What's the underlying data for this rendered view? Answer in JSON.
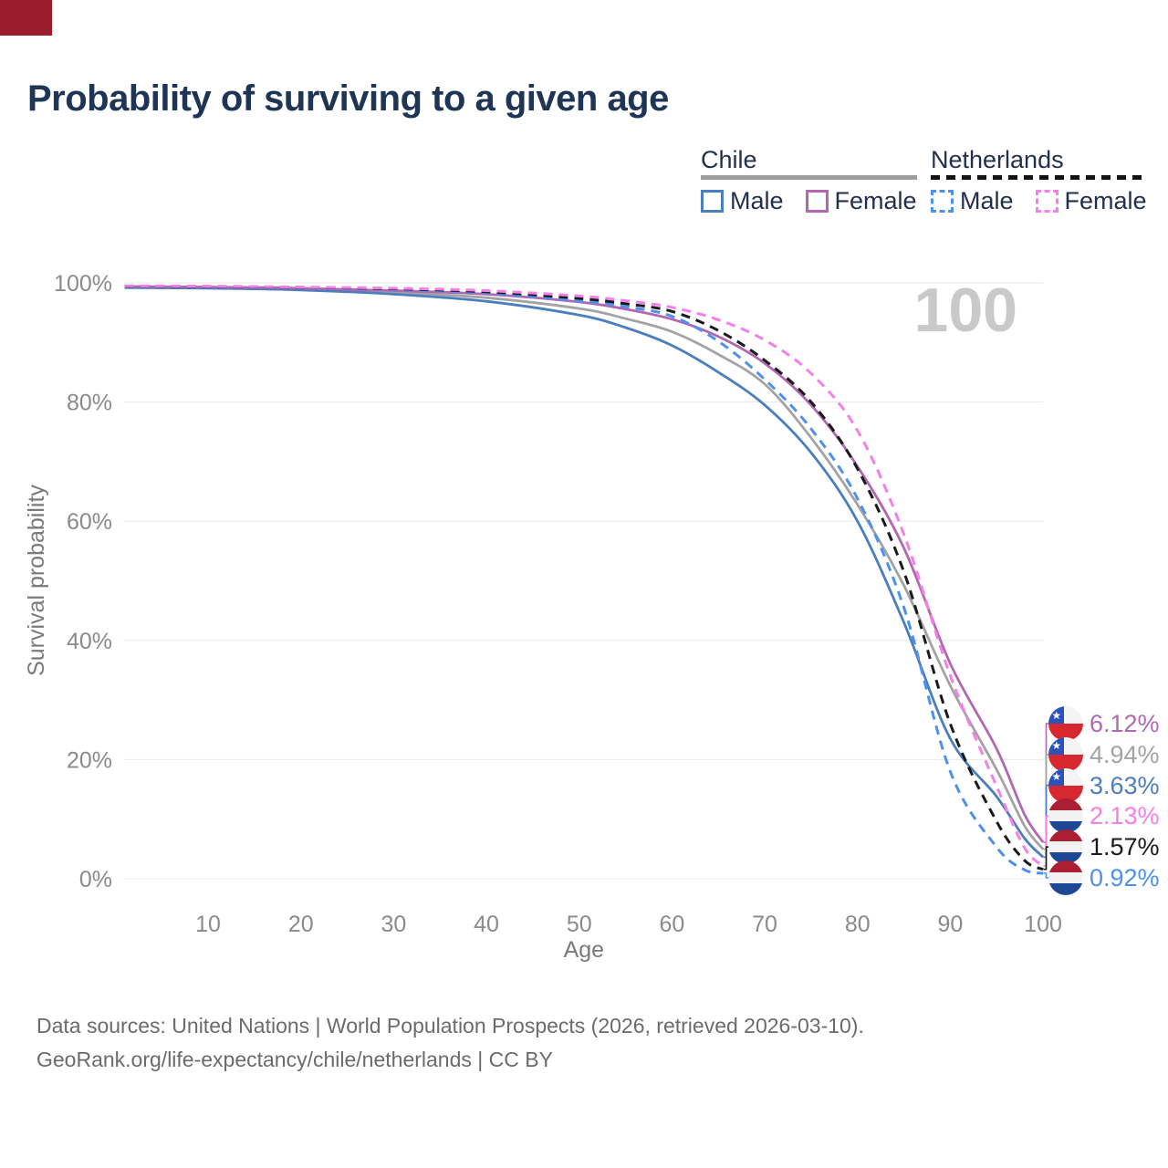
{
  "title": "Probability of surviving to a given age",
  "watermark": "100",
  "corner_artifact": {
    "color": "#9b1c2c"
  },
  "legend": {
    "groups": [
      {
        "label": "Chile",
        "line_style": "solid",
        "underline_color": "#9e9e9e",
        "items": [
          {
            "label": "Male",
            "color": "#4a7ebc"
          },
          {
            "label": "Female",
            "color": "#b168b1"
          }
        ]
      },
      {
        "label": "Netherlands",
        "line_style": "dashed",
        "underline_color": "#141414",
        "items": [
          {
            "label": "Male",
            "color": "#4d90ee"
          },
          {
            "label": "Female",
            "color": "#f57ee8"
          }
        ]
      }
    ]
  },
  "chart_data": {
    "type": "line",
    "title": "Probability of surviving to a given age",
    "xlabel": "Age",
    "ylabel": "Survival probability",
    "xlim": [
      1,
      100
    ],
    "ylim": [
      0,
      100
    ],
    "grid": "horizontal",
    "x_ticks": [
      10,
      20,
      30,
      40,
      50,
      60,
      70,
      80,
      90,
      100
    ],
    "y_ticks": [
      0,
      20,
      40,
      60,
      80,
      100
    ],
    "y_tick_suffix": "%",
    "x": [
      1,
      10,
      20,
      30,
      40,
      50,
      55,
      60,
      65,
      70,
      75,
      80,
      85,
      90,
      95,
      98,
      100
    ],
    "series": [
      {
        "name": "Chile Female",
        "country": "Chile",
        "sex": "Female",
        "color": "#b168b1",
        "dashed": false,
        "end_label": "6.12%",
        "values": [
          99.4,
          99.3,
          99.1,
          98.7,
          98.1,
          96.8,
          95.6,
          93.9,
          91.0,
          86.5,
          79.5,
          69.2,
          55.5,
          36.1,
          21.8,
          10.8,
          6.12
        ]
      },
      {
        "name": "Chile Both",
        "country": "Chile",
        "sex": "Both",
        "color": "#a3a3a3",
        "dashed": false,
        "end_label": "4.94%",
        "values": [
          99.3,
          99.2,
          99.0,
          98.4,
          97.5,
          95.7,
          94.0,
          91.8,
          88.0,
          83.0,
          74.0,
          62.8,
          49.2,
          32.4,
          18.3,
          8.9,
          4.94
        ]
      },
      {
        "name": "Chile Male",
        "country": "Chile",
        "sex": "Male",
        "color": "#4a7ebc",
        "dashed": false,
        "end_label": "3.63%",
        "values": [
          99.2,
          99.1,
          98.8,
          98.1,
          96.9,
          94.6,
          92.5,
          89.5,
          85.0,
          79.5,
          71.5,
          60.0,
          43.0,
          23.5,
          13.8,
          6.8,
          3.63
        ]
      },
      {
        "name": "Netherlands Female",
        "country": "Netherlands",
        "sex": "Female",
        "color": "#f57ee8",
        "dashed": true,
        "end_label": "2.13%",
        "values": [
          99.5,
          99.45,
          99.3,
          99.1,
          98.7,
          97.8,
          97.0,
          95.9,
          93.8,
          90.4,
          84.8,
          75.2,
          57.8,
          34.1,
          15.5,
          5.2,
          2.13
        ]
      },
      {
        "name": "Netherlands Both",
        "country": "Netherlands",
        "sex": "Both",
        "color": "#1a1a1a",
        "dashed": true,
        "end_label": "1.57%",
        "values": [
          99.45,
          99.4,
          99.25,
          99.0,
          98.5,
          97.4,
          96.5,
          95.2,
          92.0,
          87.0,
          80.0,
          68.8,
          51.5,
          26.0,
          9.6,
          3.1,
          1.57
        ]
      },
      {
        "name": "Netherlands Male",
        "country": "Netherlands",
        "sex": "Male",
        "color": "#4d90ee",
        "dashed": true,
        "end_label": "0.92%",
        "values": [
          99.4,
          99.35,
          99.2,
          98.9,
          98.3,
          97.0,
          96.0,
          94.4,
          90.2,
          83.8,
          75.5,
          63.8,
          45.5,
          18.0,
          5.3,
          1.5,
          0.92
        ]
      }
    ]
  },
  "footer": {
    "line1": "Data sources: United Nations | World Population Prospects (2026, retrieved 2026-03-10).",
    "line2": "GeoRank.org/life-expectancy/chile/netherlands | CC BY"
  }
}
